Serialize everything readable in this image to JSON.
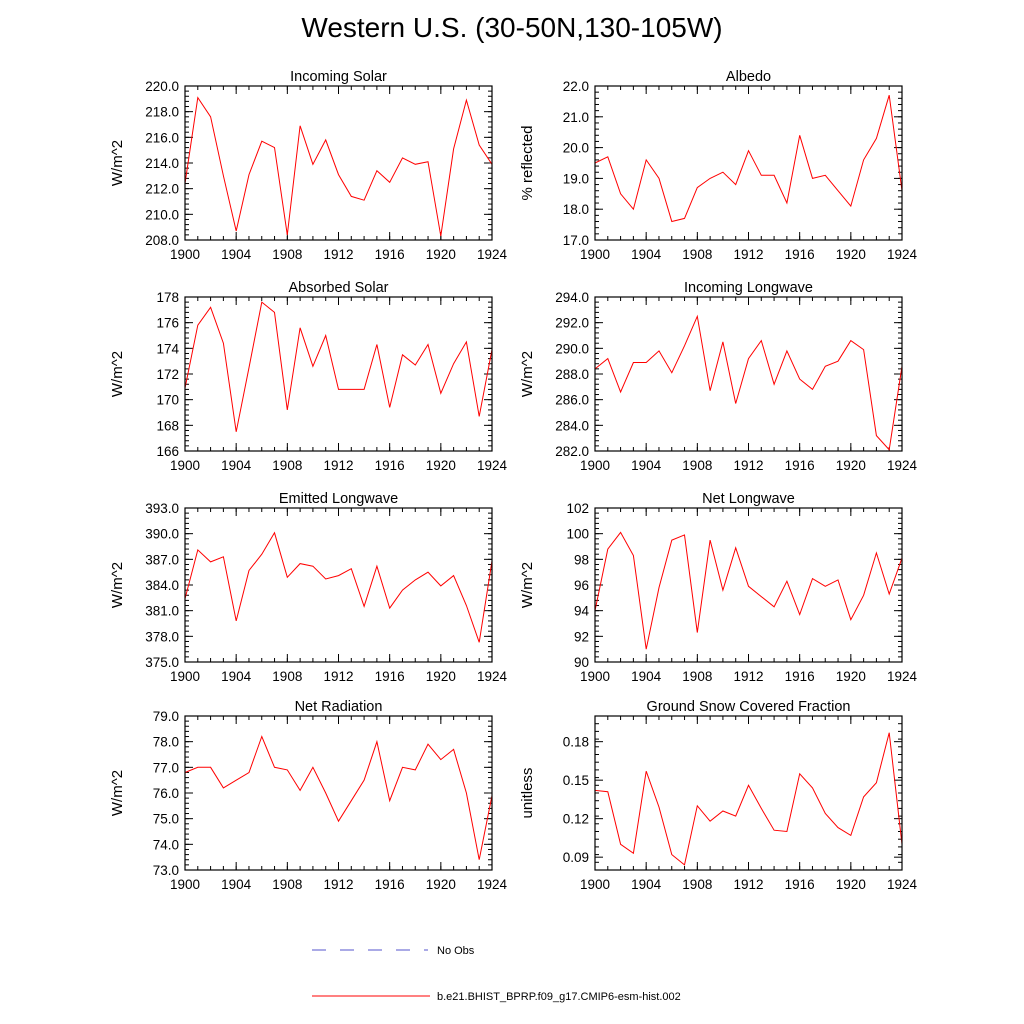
{
  "title": "Western U.S. (30-50N,130-105W)",
  "colors": {
    "model": "#ff0000",
    "obs": "#5555cc",
    "axis": "#000000"
  },
  "legend": [
    {
      "label": "No Obs",
      "style": "dashed",
      "color": "#5555cc"
    },
    {
      "label": "b.e21.BHIST_BPRP.f09_g17.CMIP6-esm-hist.002",
      "style": "solid",
      "color": "#ff0000"
    }
  ],
  "chart_data": [
    {
      "type": "line",
      "title": "Incoming Solar",
      "ylabel": "W/m^2",
      "xlim": [
        1900,
        1924
      ],
      "ylim": [
        208,
        220
      ],
      "xticks": [
        "1900",
        "1904",
        "1908",
        "1912",
        "1916",
        "1920",
        "1924"
      ],
      "yticks": [
        "208.0",
        "210.0",
        "212.0",
        "214.0",
        "216.0",
        "218.0",
        "220.0"
      ],
      "x": [
        1900,
        1901,
        1902,
        1903,
        1904,
        1905,
        1906,
        1907,
        1908,
        1909,
        1910,
        1911,
        1912,
        1913,
        1914,
        1915,
        1916,
        1917,
        1918,
        1919,
        1920,
        1921,
        1922,
        1923,
        1924
      ],
      "values": [
        212.4,
        219.1,
        217.6,
        213.0,
        208.7,
        213.1,
        215.7,
        215.2,
        208.4,
        216.9,
        213.9,
        215.8,
        213.1,
        211.4,
        211.1,
        213.4,
        212.5,
        214.4,
        213.9,
        214.1,
        208.3,
        215.1,
        218.9,
        215.4,
        213.9
      ]
    },
    {
      "type": "line",
      "title": "Albedo",
      "ylabel": "% reflected",
      "xlim": [
        1900,
        1924
      ],
      "ylim": [
        17,
        22
      ],
      "xticks": [
        "1900",
        "1904",
        "1908",
        "1912",
        "1916",
        "1920",
        "1924"
      ],
      "yticks": [
        "17.0",
        "18.0",
        "19.0",
        "20.0",
        "21.0",
        "22.0"
      ],
      "x": [
        1900,
        1901,
        1902,
        1903,
        1904,
        1905,
        1906,
        1907,
        1908,
        1909,
        1910,
        1911,
        1912,
        1913,
        1914,
        1915,
        1916,
        1917,
        1918,
        1919,
        1920,
        1921,
        1922,
        1923,
        1924
      ],
      "values": [
        19.5,
        19.7,
        18.5,
        18.0,
        19.6,
        19.0,
        17.6,
        17.7,
        18.7,
        19.0,
        19.2,
        18.8,
        19.9,
        19.1,
        19.1,
        18.2,
        20.4,
        19.0,
        19.1,
        18.6,
        18.1,
        19.6,
        20.3,
        21.7,
        18.6
      ]
    },
    {
      "type": "line",
      "title": "Absorbed Solar",
      "ylabel": "W/m^2",
      "xlim": [
        1900,
        1924
      ],
      "ylim": [
        166,
        178
      ],
      "xticks": [
        "1900",
        "1904",
        "1908",
        "1912",
        "1916",
        "1920",
        "1924"
      ],
      "yticks": [
        "166",
        "168",
        "170",
        "172",
        "174",
        "176",
        "178"
      ],
      "x": [
        1900,
        1901,
        1902,
        1903,
        1904,
        1905,
        1906,
        1907,
        1908,
        1909,
        1910,
        1911,
        1912,
        1913,
        1914,
        1915,
        1916,
        1917,
        1918,
        1919,
        1920,
        1921,
        1922,
        1923,
        1924
      ],
      "values": [
        170.9,
        175.8,
        177.2,
        174.4,
        167.5,
        172.5,
        177.6,
        176.8,
        169.2,
        175.6,
        172.6,
        175.0,
        170.8,
        170.8,
        170.8,
        174.3,
        169.4,
        173.5,
        172.7,
        174.3,
        170.5,
        172.8,
        174.5,
        168.7,
        173.9
      ]
    },
    {
      "type": "line",
      "title": "Incoming Longwave",
      "ylabel": "W/m^2",
      "xlim": [
        1900,
        1924
      ],
      "ylim": [
        282,
        294
      ],
      "xticks": [
        "1900",
        "1904",
        "1908",
        "1912",
        "1916",
        "1920",
        "1924"
      ],
      "yticks": [
        "282.0",
        "284.0",
        "286.0",
        "288.0",
        "290.0",
        "292.0",
        "294.0"
      ],
      "x": [
        1900,
        1901,
        1902,
        1903,
        1904,
        1905,
        1906,
        1907,
        1908,
        1909,
        1910,
        1911,
        1912,
        1913,
        1914,
        1915,
        1916,
        1917,
        1918,
        1919,
        1920,
        1921,
        1922,
        1923,
        1924
      ],
      "values": [
        288.4,
        289.2,
        286.6,
        288.9,
        288.9,
        289.8,
        288.1,
        290.2,
        292.5,
        286.7,
        290.5,
        285.7,
        289.2,
        290.6,
        287.2,
        289.8,
        287.6,
        286.8,
        288.6,
        289.0,
        290.6,
        289.9,
        283.2,
        282.1,
        288.6
      ]
    },
    {
      "type": "line",
      "title": "Emitted Longwave",
      "ylabel": "W/m^2",
      "xlim": [
        1900,
        1924
      ],
      "ylim": [
        375,
        393
      ],
      "xticks": [
        "1900",
        "1904",
        "1908",
        "1912",
        "1916",
        "1920",
        "1924"
      ],
      "yticks": [
        "375.0",
        "378.0",
        "381.0",
        "384.0",
        "387.0",
        "390.0",
        "393.0"
      ],
      "x": [
        1900,
        1901,
        1902,
        1903,
        1904,
        1905,
        1906,
        1907,
        1908,
        1909,
        1910,
        1911,
        1912,
        1913,
        1914,
        1915,
        1916,
        1917,
        1918,
        1919,
        1920,
        1921,
        1922,
        1923,
        1924
      ],
      "values": [
        382.4,
        388.1,
        386.7,
        387.3,
        379.8,
        385.7,
        387.6,
        390.1,
        384.9,
        386.5,
        386.2,
        384.7,
        385.1,
        385.9,
        381.5,
        386.2,
        381.3,
        383.4,
        384.6,
        385.5,
        383.9,
        385.1,
        381.6,
        377.3,
        386.8
      ]
    },
    {
      "type": "line",
      "title": "Net Longwave",
      "ylabel": "W/m^2",
      "xlim": [
        1900,
        1924
      ],
      "ylim": [
        90,
        102
      ],
      "xticks": [
        "1900",
        "1904",
        "1908",
        "1912",
        "1916",
        "1920",
        "1924"
      ],
      "yticks": [
        "90",
        "92",
        "94",
        "96",
        "98",
        "100",
        "102"
      ],
      "x": [
        1900,
        1901,
        1902,
        1903,
        1904,
        1905,
        1906,
        1907,
        1908,
        1909,
        1910,
        1911,
        1912,
        1913,
        1914,
        1915,
        1916,
        1917,
        1918,
        1919,
        1920,
        1921,
        1922,
        1923,
        1924
      ],
      "values": [
        94.0,
        98.8,
        100.1,
        98.3,
        91.0,
        95.8,
        99.5,
        99.9,
        92.3,
        99.5,
        95.6,
        98.9,
        95.9,
        95.1,
        94.3,
        96.3,
        93.7,
        96.5,
        95.9,
        96.4,
        93.3,
        95.2,
        98.5,
        95.3,
        98.1
      ]
    },
    {
      "type": "line",
      "title": "Net Radiation",
      "ylabel": "W/m^2",
      "xlim": [
        1900,
        1924
      ],
      "ylim": [
        73,
        79
      ],
      "xticks": [
        "1900",
        "1904",
        "1908",
        "1912",
        "1916",
        "1920",
        "1924"
      ],
      "yticks": [
        "73.0",
        "74.0",
        "75.0",
        "76.0",
        "77.0",
        "78.0",
        "79.0"
      ],
      "x": [
        1900,
        1901,
        1902,
        1903,
        1904,
        1905,
        1906,
        1907,
        1908,
        1909,
        1910,
        1911,
        1912,
        1913,
        1914,
        1915,
        1916,
        1917,
        1918,
        1919,
        1920,
        1921,
        1922,
        1923,
        1924
      ],
      "values": [
        76.8,
        77.0,
        77.0,
        76.2,
        76.5,
        76.8,
        78.2,
        77.0,
        76.9,
        76.1,
        77.0,
        76.0,
        74.9,
        75.7,
        76.5,
        78.0,
        75.7,
        77.0,
        76.9,
        77.9,
        77.3,
        77.7,
        76.0,
        73.4,
        75.9
      ]
    },
    {
      "type": "line",
      "title": "Ground Snow Covered Fraction",
      "ylabel": "unitless",
      "xlim": [
        1900,
        1924
      ],
      "ylim": [
        0.08,
        0.2
      ],
      "xticks": [
        "1900",
        "1904",
        "1908",
        "1912",
        "1916",
        "1920",
        "1924"
      ],
      "yticks": [
        "0.09",
        "0.12",
        "0.15",
        "0.18"
      ],
      "x": [
        1900,
        1901,
        1902,
        1903,
        1904,
        1905,
        1906,
        1907,
        1908,
        1909,
        1910,
        1911,
        1912,
        1913,
        1914,
        1915,
        1916,
        1917,
        1918,
        1919,
        1920,
        1921,
        1922,
        1923,
        1924
      ],
      "values": [
        0.142,
        0.141,
        0.1,
        0.093,
        0.157,
        0.129,
        0.092,
        0.084,
        0.13,
        0.118,
        0.126,
        0.122,
        0.146,
        0.128,
        0.111,
        0.11,
        0.155,
        0.144,
        0.124,
        0.113,
        0.107,
        0.137,
        0.148,
        0.187,
        0.1
      ]
    }
  ]
}
